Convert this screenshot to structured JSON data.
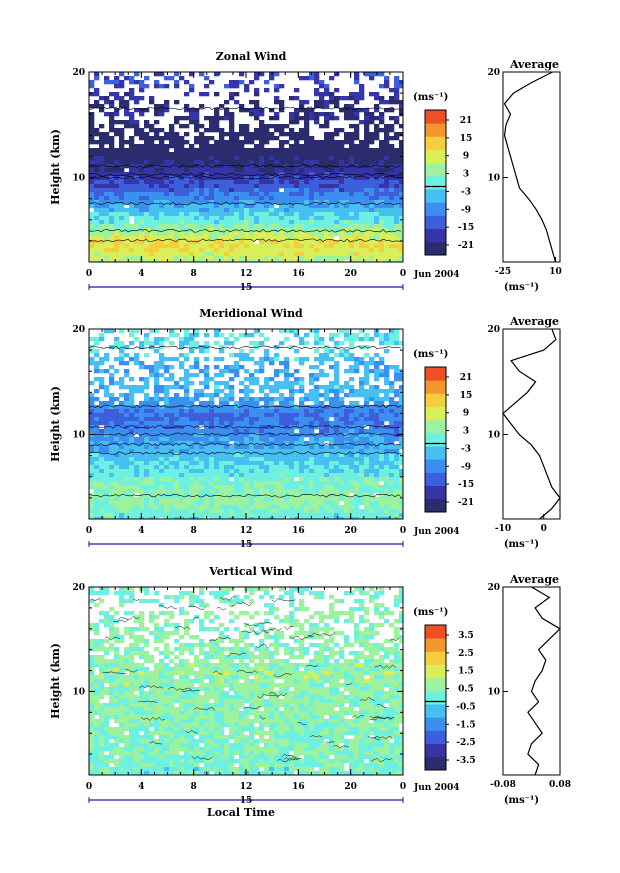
{
  "chart_data": [
    {
      "type": "heatmap",
      "title": "Zonal Wind",
      "ylabel": "Height (km)",
      "xlabel": "",
      "x_ticks": [
        "0",
        "4",
        "8",
        "12",
        "16",
        "20",
        "0"
      ],
      "y_ticks": [
        "10",
        "20"
      ],
      "date_label": "15",
      "month_label": "Jun 2004",
      "xlim": [
        0,
        24
      ],
      "ylim": [
        2,
        20
      ],
      "colorbar": {
        "unit": "(ms⁻¹)",
        "ticks": [
          "21",
          "15",
          "9",
          "3",
          "-3",
          "-9",
          "-15",
          "-21"
        ]
      },
      "profile": {
        "title": "Average",
        "x_ticks": [
          "-25",
          "10"
        ],
        "xlim": [
          -25,
          13
        ],
        "xlabel": "(ms⁻¹)",
        "y_ticks": [
          "10",
          "20"
        ],
        "heights": [
          2,
          3,
          4,
          5,
          6,
          7,
          8,
          9,
          10,
          11,
          12,
          13,
          14,
          15,
          16,
          17,
          18,
          19,
          20
        ],
        "values": [
          10,
          8,
          6,
          4,
          1,
          -3,
          -8,
          -14,
          -16,
          -18,
          -20,
          -22,
          -24,
          -23,
          -20,
          -24,
          -18,
          -6,
          8
        ]
      },
      "field_profile": [
        {
          "y": 2,
          "v": 5
        },
        {
          "y": 3,
          "v": 10
        },
        {
          "y": 4,
          "v": 12
        },
        {
          "y": 5,
          "v": 6
        },
        {
          "y": 6,
          "v": 0
        },
        {
          "y": 7,
          "v": -4
        },
        {
          "y": 8,
          "v": -9
        },
        {
          "y": 9,
          "v": -14
        },
        {
          "y": 10,
          "v": -17
        },
        {
          "y": 11,
          "v": -21
        },
        {
          "y": 12,
          "v": -24
        },
        {
          "y": 13,
          "v": -26
        },
        {
          "y": 14,
          "v": -30
        },
        {
          "y": 15,
          "v": -26
        },
        {
          "y": 16,
          "v": -22
        },
        {
          "y": 17,
          "v": -24
        },
        {
          "y": 18,
          "v": -20
        },
        {
          "y": 19,
          "v": -17
        }
      ]
    },
    {
      "type": "heatmap",
      "title": "Meridional Wind",
      "ylabel": "Height (km)",
      "xlabel": "",
      "x_ticks": [
        "0",
        "4",
        "8",
        "12",
        "16",
        "20",
        "0"
      ],
      "y_ticks": [
        "10",
        "20"
      ],
      "date_label": "15",
      "month_label": "Jun 2004",
      "xlim": [
        0,
        24
      ],
      "ylim": [
        2,
        20
      ],
      "colorbar": {
        "unit": "(ms⁻¹)",
        "ticks": [
          "21",
          "15",
          "9",
          "3",
          "-3",
          "-9",
          "-15",
          "-21"
        ]
      },
      "profile": {
        "title": "Average",
        "x_ticks": [
          "-10",
          "0"
        ],
        "xlim": [
          -10,
          4
        ],
        "xlabel": "(ms⁻¹)",
        "y_ticks": [
          "10",
          "20"
        ],
        "heights": [
          2,
          3,
          4,
          5,
          6,
          7,
          8,
          9,
          10,
          11,
          12,
          13,
          14,
          15,
          16,
          17,
          18,
          19,
          20
        ],
        "values": [
          -1,
          2,
          4,
          2,
          1,
          0,
          -1,
          -3,
          -6,
          -8,
          -10,
          -7,
          -4,
          -2,
          -6,
          -8,
          0,
          3,
          2
        ]
      },
      "field_profile": [
        {
          "y": 2,
          "v": -2
        },
        {
          "y": 3,
          "v": 2
        },
        {
          "y": 4,
          "v": 4
        },
        {
          "y": 5,
          "v": 3
        },
        {
          "y": 6,
          "v": 1
        },
        {
          "y": 7,
          "v": -2
        },
        {
          "y": 8,
          "v": -4
        },
        {
          "y": 9,
          "v": -6
        },
        {
          "y": 10,
          "v": -9
        },
        {
          "y": 11,
          "v": -11
        },
        {
          "y": 12,
          "v": -13
        },
        {
          "y": 13,
          "v": -9
        },
        {
          "y": 14,
          "v": -6
        },
        {
          "y": 15,
          "v": -5
        },
        {
          "y": 16,
          "v": -7
        },
        {
          "y": 17,
          "v": -6
        },
        {
          "y": 18,
          "v": -3
        },
        {
          "y": 19,
          "v": -2
        }
      ]
    },
    {
      "type": "heatmap",
      "title": "Vertical Wind",
      "ylabel": "Height (km)",
      "xlabel": "Local Time",
      "x_ticks": [
        "0",
        "4",
        "8",
        "12",
        "16",
        "20",
        "0"
      ],
      "y_ticks": [
        "10",
        "20"
      ],
      "date_label": "15",
      "month_label": "Jun 2004",
      "xlim": [
        0,
        24
      ],
      "ylim": [
        2,
        20
      ],
      "colorbar": {
        "unit": "(ms⁻¹)",
        "ticks": [
          "3.5",
          "2.5",
          "1.5",
          "0.5",
          "-0.5",
          "-1.5",
          "-2.5",
          "-3.5"
        ]
      },
      "profile": {
        "title": "Average",
        "x_ticks": [
          "-0.08",
          "0.08"
        ],
        "xlim": [
          -0.08,
          0.08
        ],
        "xlabel": "(ms⁻¹)",
        "y_ticks": [
          "10",
          "20"
        ],
        "heights": [
          2,
          3,
          4,
          5,
          6,
          7,
          8,
          9,
          10,
          11,
          12,
          13,
          14,
          15,
          16,
          17,
          18,
          19,
          20
        ],
        "values": [
          0.01,
          0.02,
          -0.01,
          0.0,
          0.03,
          0.01,
          -0.01,
          0.02,
          0.0,
          0.01,
          0.03,
          0.04,
          0.02,
          0.05,
          0.08,
          0.03,
          0.01,
          0.05,
          0.0
        ]
      },
      "field_profile": [
        {
          "y": 2,
          "v": 0.1
        },
        {
          "y": 4,
          "v": 0.3
        },
        {
          "y": 6,
          "v": 0.4
        },
        {
          "y": 8,
          "v": 0.5
        },
        {
          "y": 10,
          "v": 0.6
        },
        {
          "y": 12,
          "v": 0.7
        },
        {
          "y": 14,
          "v": 0.5
        },
        {
          "y": 16,
          "v": 0.6
        },
        {
          "y": 18,
          "v": 0.4
        },
        {
          "y": 19,
          "v": 0.3
        }
      ]
    }
  ],
  "colors": {
    "palette": [
      "#2b2c6e",
      "#3535a7",
      "#3d5fdc",
      "#3a8ff0",
      "#46bff2",
      "#6ef0e0",
      "#9cf29e",
      "#d8ef5a",
      "#f3cf3c",
      "#f5962c",
      "#ef4f24"
    ]
  }
}
